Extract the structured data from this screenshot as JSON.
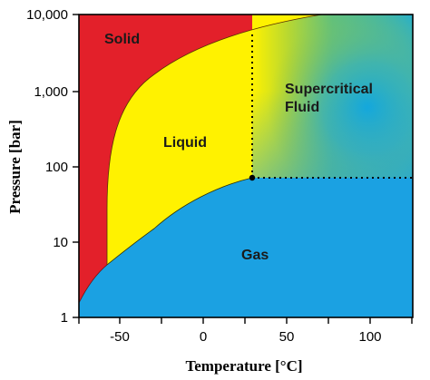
{
  "diagram": {
    "y_axis": {
      "title": "Pressure [bar]",
      "ticks": [
        "1",
        "10",
        "100",
        "1,000",
        "10,000"
      ],
      "scale": "log"
    },
    "x_axis": {
      "title": "Temperature [°C]",
      "ticks": [
        "-50",
        "0",
        "50",
        "100"
      ]
    },
    "regions": {
      "solid": "Solid",
      "liquid": "Liquid",
      "gas": "Gas",
      "supercritical_line1": "Supercritical",
      "supercritical_line2": "Fluid"
    },
    "colors": {
      "solid": "#e3202a",
      "liquid": "#fff200",
      "gas": "#1ba1e2",
      "supercritical_core": "#15a9d6",
      "supercritical_edge": "#9ac640",
      "boundary": "#000000"
    },
    "critical_point": {
      "temperature_c": 31,
      "pressure_bar": 74
    }
  }
}
